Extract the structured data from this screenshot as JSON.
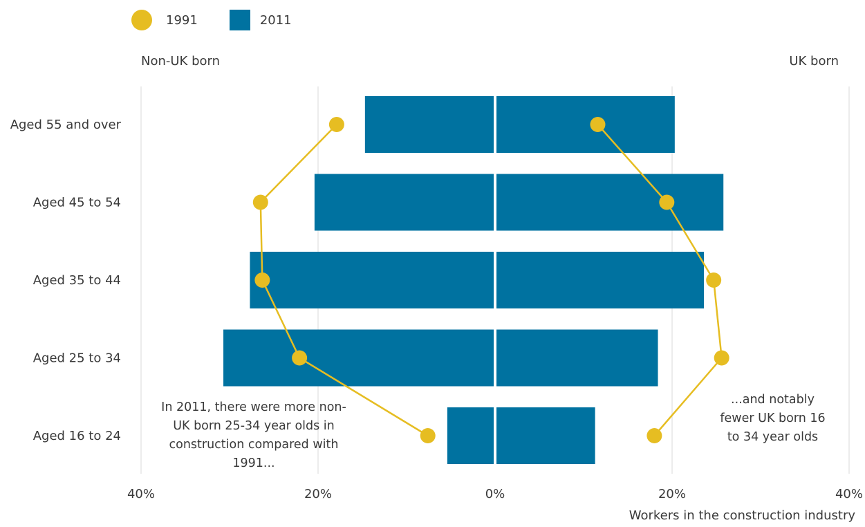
{
  "legend": {
    "items": [
      {
        "label": "1991",
        "shape": "circle",
        "color": "#e6bd22"
      },
      {
        "label": "2011",
        "shape": "square",
        "color": "#0072a0"
      }
    ]
  },
  "side_labels": {
    "left": "Non-UK born",
    "right": "UK born"
  },
  "annotations": {
    "left": "In 2011, there were more non-UK born 25-34 year olds in construction compared with 1991...",
    "right": "...and notably fewer UK born 16 to 34 year olds"
  },
  "xlabel": "Workers in the construction industry",
  "chart_data": {
    "type": "bar",
    "orientation": "horizontal-diverging",
    "categories": [
      "Aged 55 and over",
      "Aged 45 to 54",
      "Aged 35 to 44",
      "Aged 25 to 34",
      "Aged 16 to 24"
    ],
    "xlim": [
      -40,
      40
    ],
    "x_ticks": [
      -40,
      -20,
      0,
      20,
      40
    ],
    "x_tick_labels": [
      "40%",
      "20%",
      "0%",
      "20%",
      "40%"
    ],
    "grid": true,
    "legend_position": "top-left",
    "series": [
      {
        "name": "2011",
        "mark": "bar",
        "color": "#0072a0",
        "non_uk_born": [
          14.7,
          20.4,
          27.7,
          30.7,
          5.4
        ],
        "uk_born": [
          20.3,
          25.8,
          23.6,
          18.4,
          11.3
        ]
      },
      {
        "name": "1991",
        "mark": "point-line",
        "color": "#e6bd22",
        "non_uk_born": [
          17.9,
          26.5,
          26.3,
          22.1,
          7.6
        ],
        "uk_born": [
          11.6,
          19.4,
          24.7,
          25.6,
          18.0
        ]
      }
    ]
  }
}
